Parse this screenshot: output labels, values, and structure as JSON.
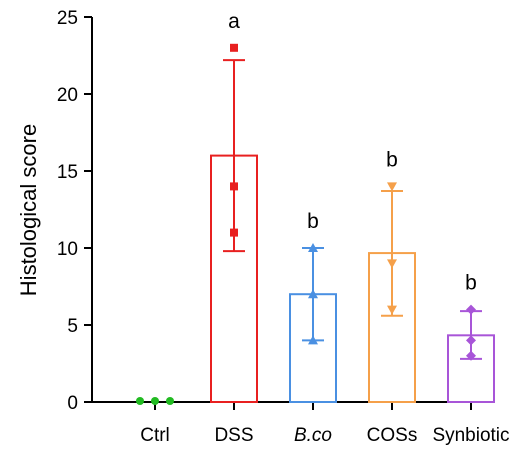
{
  "chart_data": {
    "type": "bar",
    "title": "",
    "xlabel": "",
    "ylabel": "Histological score",
    "ylim": [
      0,
      25
    ],
    "yticks": [
      0,
      5,
      10,
      15,
      20,
      25
    ],
    "grid": false,
    "categories": [
      "Ctrl",
      "DSS",
      "B.co",
      "COSs",
      "Synbiotic"
    ],
    "italic_categories": [
      "B.co"
    ],
    "values": [
      0,
      16,
      7,
      9.67,
      4.33
    ],
    "error_low": [
      0,
      9.8,
      4,
      5.6,
      2.8
    ],
    "error_high": [
      0,
      22.2,
      10,
      13.7,
      5.9
    ],
    "points": [
      [
        0,
        0,
        0
      ],
      [
        23,
        14,
        11
      ],
      [
        10,
        7,
        4
      ],
      [
        14,
        9,
        6
      ],
      [
        6,
        4,
        3
      ]
    ],
    "markers": [
      "circle",
      "square",
      "triangle-up",
      "triangle-down",
      "diamond"
    ],
    "colors": [
      "#22bb22",
      "#e82020",
      "#4a90e2",
      "#f5a04a",
      "#a855d8"
    ],
    "significance": [
      "",
      "a",
      "b",
      "b",
      "b"
    ]
  }
}
